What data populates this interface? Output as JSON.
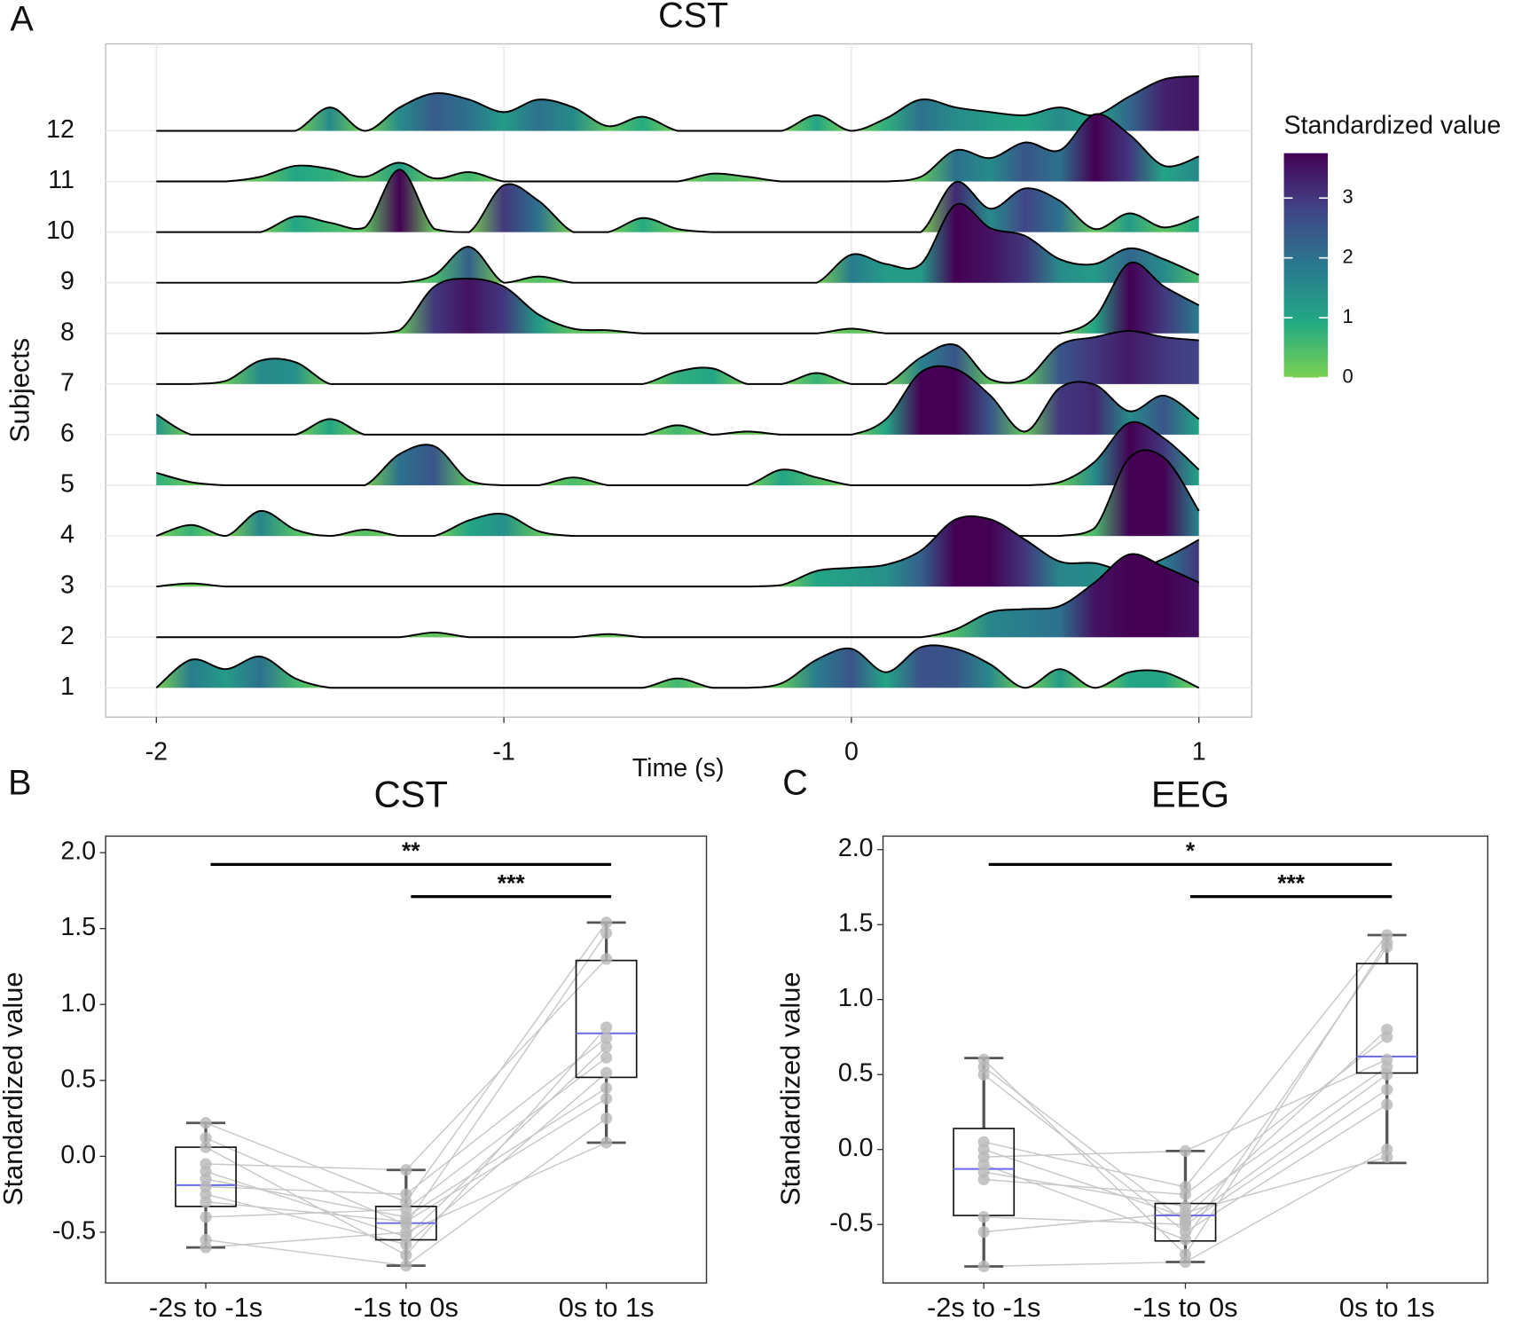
{
  "chart_data": [
    {
      "type": "ridgeline",
      "panel": "A",
      "title": "CST",
      "xlabel": "Time (s)",
      "ylabel": "Subjects",
      "legend_title": "Standardized value",
      "colormap": [
        "#7ad151",
        "#22a884",
        "#2a788e",
        "#414487",
        "#440154"
      ],
      "colorlim": [
        0,
        3.75
      ],
      "colorticks": [
        0,
        1,
        2,
        3
      ],
      "xlim": [
        -2.146,
        1.152
      ],
      "xticks": [
        -2,
        -1,
        0,
        1
      ],
      "grid": true,
      "x": [
        -2.0,
        -1.9,
        -1.8,
        -1.7,
        -1.6,
        -1.5,
        -1.4,
        -1.3,
        -1.2,
        -1.1,
        -1.0,
        -0.9,
        -0.8,
        -0.7,
        -0.6,
        -0.5,
        -0.4,
        -0.3,
        -0.2,
        -0.1,
        0.0,
        0.1,
        0.2,
        0.3,
        0.4,
        0.5,
        0.6,
        0.7,
        0.8,
        0.9,
        1.0
      ],
      "rows": [
        {
          "label": "1",
          "values": [
            0,
            1.8,
            1.2,
            2.0,
            0.6,
            0,
            0,
            0,
            0,
            0,
            0,
            0,
            0,
            0,
            0,
            0.6,
            0,
            0,
            0.3,
            1.8,
            2.5,
            1.0,
            2.6,
            2.5,
            1.5,
            0,
            1.2,
            0,
            1.0,
            1.0,
            0
          ]
        },
        {
          "label": "2",
          "values": [
            0,
            0,
            0,
            0,
            0,
            0,
            0,
            0,
            0.3,
            0,
            0,
            0,
            0,
            0.2,
            0,
            0,
            0,
            0,
            0,
            0,
            0,
            0,
            0,
            0.5,
            1.6,
            1.8,
            2.0,
            3.5,
            5.3,
            4.5,
            3.5
          ]
        },
        {
          "label": "3",
          "values": [
            0,
            0.2,
            0,
            0,
            0,
            0,
            0,
            0,
            0,
            0,
            0,
            0,
            0,
            0,
            0,
            0,
            0,
            0,
            0.1,
            1.0,
            1.2,
            1.4,
            2.3,
            4.3,
            4.3,
            3.0,
            1.6,
            1.5,
            1.0,
            1.8,
            3.0
          ]
        },
        {
          "label": "4",
          "values": [
            0,
            0.7,
            0,
            1.6,
            0.4,
            0,
            0.4,
            0,
            0,
            1.0,
            1.4,
            0.3,
            0,
            0,
            0,
            0,
            0,
            0,
            0,
            0,
            0,
            0,
            0,
            0,
            0,
            0,
            0,
            0.5,
            5.0,
            5.0,
            1.6
          ]
        },
        {
          "label": "5",
          "values": [
            0.8,
            0.2,
            0,
            0,
            0,
            0,
            0,
            2.0,
            2.5,
            0.3,
            0,
            0,
            0.5,
            0,
            0,
            0,
            0,
            0,
            1.0,
            0.5,
            0,
            0,
            0,
            0,
            0,
            0,
            0.2,
            1.5,
            4.0,
            3.0,
            1.0
          ]
        },
        {
          "label": "6",
          "values": [
            1.3,
            0,
            0,
            0,
            0,
            1.0,
            0,
            0,
            0,
            0,
            0,
            0,
            0,
            0,
            0,
            0.6,
            0,
            0.2,
            0,
            0,
            0,
            1.0,
            4.0,
            4.2,
            2.5,
            0.2,
            3.0,
            3.2,
            1.5,
            2.5,
            1.0
          ]
        },
        {
          "label": "7",
          "values": [
            0,
            0,
            0.2,
            1.5,
            1.4,
            0,
            0,
            0,
            0,
            0,
            0,
            0,
            0,
            0,
            0,
            0.8,
            1.0,
            0,
            0,
            0.7,
            0,
            0,
            1.7,
            2.5,
            0.3,
            0.3,
            2.5,
            3.0,
            3.4,
            3.0,
            2.8
          ]
        },
        {
          "label": "8",
          "values": [
            0,
            0,
            0,
            0,
            0,
            0,
            0,
            0.2,
            3.0,
            3.5,
            3.0,
            1.2,
            0.3,
            0.2,
            0,
            0,
            0,
            0,
            0,
            0,
            0.3,
            0,
            0,
            0,
            0,
            0,
            0,
            1.0,
            4.5,
            3.0,
            1.8
          ]
        },
        {
          "label": "9",
          "values": [
            0,
            0,
            0,
            0,
            0,
            0,
            0,
            0,
            0.5,
            2.3,
            0,
            0.4,
            0,
            0,
            0,
            0,
            0,
            0,
            0,
            0,
            1.8,
            1.2,
            1.2,
            5.0,
            3.5,
            3.0,
            1.5,
            1.2,
            2.2,
            1.5,
            0.5
          ]
        },
        {
          "label": "10",
          "values": [
            0,
            0,
            0,
            0,
            1.0,
            0.6,
            0.3,
            4.0,
            0.2,
            0,
            3.0,
            2.0,
            0,
            0,
            0.9,
            0.2,
            0,
            0,
            0,
            0,
            0,
            0,
            0,
            3.2,
            1.5,
            2.8,
            2.0,
            0.2,
            1.2,
            0.3,
            1.0
          ]
        },
        {
          "label": "11",
          "values": [
            0,
            0,
            0,
            0.3,
            1.0,
            0.8,
            0.3,
            1.2,
            0.2,
            0.6,
            0,
            0,
            0,
            0,
            0,
            0,
            0.5,
            0.3,
            0,
            0,
            0,
            0,
            0.3,
            2.0,
            1.5,
            2.5,
            2.0,
            4.3,
            3.0,
            1.0,
            1.6
          ]
        },
        {
          "label": "12",
          "values": [
            0,
            0,
            0,
            0,
            0,
            1.5,
            0,
            1.5,
            2.4,
            2.0,
            1.2,
            2.0,
            1.5,
            0.3,
            0.9,
            0,
            0,
            0,
            0,
            1.0,
            0,
            0.8,
            2.0,
            1.5,
            1.2,
            1.0,
            1.5,
            1.0,
            2.2,
            3.3,
            3.5
          ]
        }
      ]
    },
    {
      "type": "box",
      "panel": "B",
      "title": "CST",
      "ylabel": "Standardized value",
      "categories": [
        "-2s to -1s",
        "-1s to 0s",
        "0s to 1s"
      ],
      "ylim": [
        -0.834,
        2.109
      ],
      "yticks": [
        -0.5,
        {
          "value": 0,
          "label": "0.0"
        },
        0.5,
        {
          "value": 1,
          "label": "1.0"
        },
        1.5,
        {
          "value": 2,
          "label": "2.0"
        }
      ],
      "boxes": [
        {
          "min": -0.6,
          "q1": -0.33,
          "median": -0.19,
          "q3": 0.06,
          "max": 0.22
        },
        {
          "min": -0.72,
          "q1": -0.55,
          "median": -0.44,
          "q3": -0.33,
          "max": -0.09
        },
        {
          "min": 0.09,
          "q1": 0.52,
          "median": 0.81,
          "q3": 1.29,
          "max": 1.54
        }
      ],
      "points": [
        [
          0.22,
          -0.3,
          1.54
        ],
        [
          0.12,
          -0.45,
          1.47
        ],
        [
          0.06,
          -0.65,
          0.85
        ],
        [
          -0.05,
          -0.09,
          1.3
        ],
        [
          -0.1,
          -0.53,
          0.72
        ],
        [
          -0.15,
          -0.4,
          0.45
        ],
        [
          -0.2,
          -0.25,
          0.78
        ],
        [
          -0.25,
          -0.58,
          0.55
        ],
        [
          -0.3,
          -0.43,
          0.38
        ],
        [
          -0.4,
          -0.35,
          0.65
        ],
        [
          -0.55,
          -0.72,
          0.25
        ],
        [
          -0.6,
          -0.5,
          0.09
        ]
      ],
      "comparisons": [
        {
          "label": "**",
          "groups": [
            0,
            2
          ]
        },
        {
          "label": "***",
          "groups": [
            1,
            2
          ]
        }
      ]
    },
    {
      "type": "box",
      "panel": "C",
      "title": "EEG",
      "ylabel": "Standardized value",
      "categories": [
        "-2s to -1s",
        "-1s to 0s",
        "0s to 1s"
      ],
      "ylim": [
        -0.89,
        2.09
      ],
      "yticks": [
        -0.5,
        {
          "value": 0,
          "label": "0.0"
        },
        0.5,
        {
          "value": 1,
          "label": "1.0"
        },
        1.5,
        {
          "value": 2,
          "label": "2.0"
        }
      ],
      "boxes": [
        {
          "min": -0.78,
          "q1": -0.44,
          "median": -0.13,
          "q3": 0.14,
          "max": 0.61
        },
        {
          "min": -0.75,
          "q1": -0.61,
          "median": -0.44,
          "q3": -0.36,
          "max": -0.01
        },
        {
          "min": -0.09,
          "q1": 0.51,
          "median": 0.62,
          "q3": 1.24,
          "max": 1.43
        }
      ],
      "points": [
        [
          0.6,
          -0.7,
          1.38
        ],
        [
          0.55,
          -0.48,
          0.5
        ],
        [
          0.5,
          -0.55,
          0.3
        ],
        [
          0.05,
          -0.25,
          1.43
        ],
        [
          0.0,
          -0.45,
          0.8
        ],
        [
          -0.05,
          -0.01,
          0.6
        ],
        [
          -0.1,
          -0.6,
          1.35
        ],
        [
          -0.15,
          -0.38,
          0.55
        ],
        [
          -0.2,
          -0.3,
          0.75
        ],
        [
          -0.45,
          -0.5,
          0.4
        ],
        [
          -0.55,
          -0.42,
          -0.05
        ],
        [
          -0.78,
          -0.75,
          0.0
        ]
      ],
      "comparisons": [
        {
          "label": "*",
          "groups": [
            0,
            2
          ]
        },
        {
          "label": "***",
          "groups": [
            1,
            2
          ]
        }
      ]
    }
  ]
}
